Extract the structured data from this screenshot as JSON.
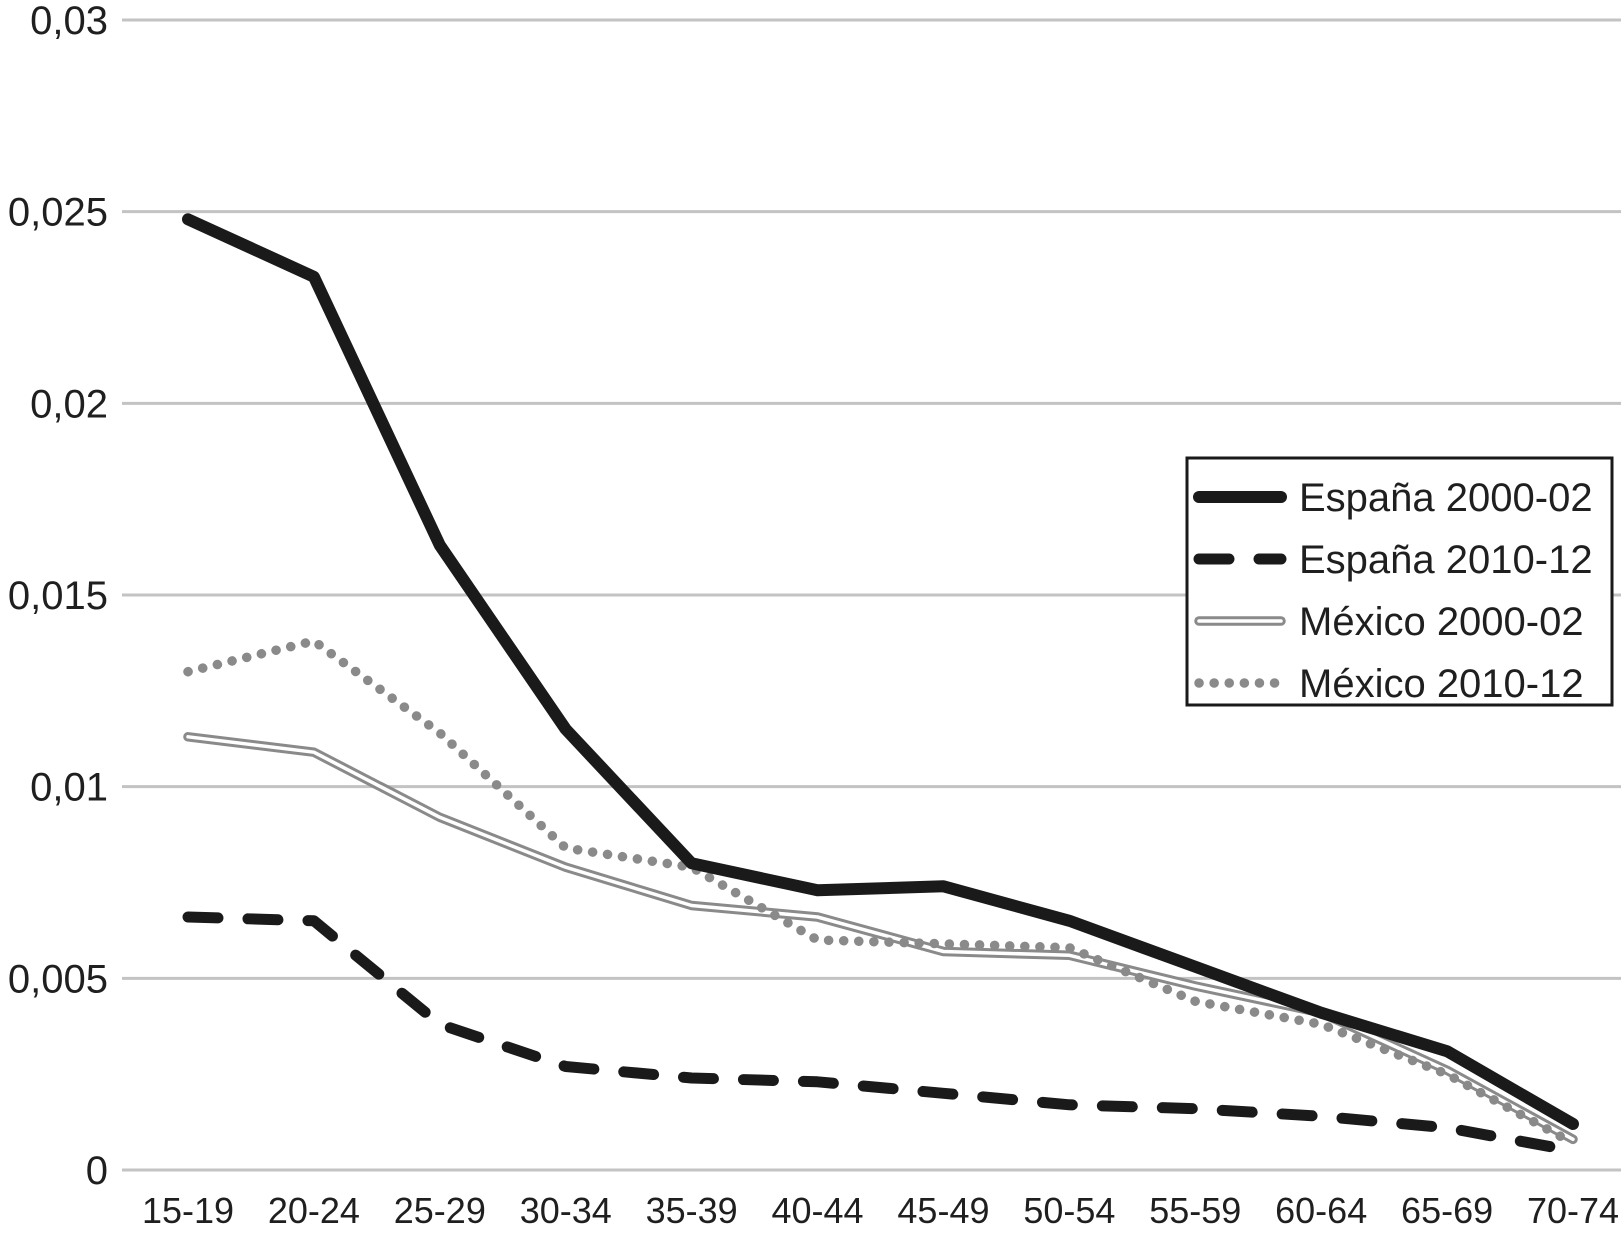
{
  "page": {
    "background_color": "#ffffff"
  },
  "chart_data": {
    "type": "line",
    "title": "",
    "xlabel": "",
    "ylabel": "",
    "categories": [
      "15-19",
      "20-24",
      "25-29",
      "30-34",
      "35-39",
      "40-44",
      "45-49",
      "50-54",
      "55-59",
      "60-64",
      "65-69",
      "70-74"
    ],
    "series": [
      {
        "id": "espana-2000-02",
        "name": "España 2000-02",
        "line_style": "solid",
        "color": "#1a1a1a",
        "values": [
          0.0248,
          0.0233,
          0.0163,
          0.0115,
          0.008,
          0.0073,
          0.0074,
          0.0065,
          0.0053,
          0.0041,
          0.0031,
          0.0012
        ]
      },
      {
        "id": "espana-2010-12",
        "name": "España 2010-12",
        "line_style": "dashed",
        "color": "#1a1a1a",
        "values": [
          0.0066,
          0.0065,
          0.0038,
          0.0027,
          0.0024,
          0.0023,
          0.002,
          0.0017,
          0.0016,
          0.0014,
          0.0011,
          0.0005
        ]
      },
      {
        "id": "mexico-2000-02",
        "name": "México 2000-02",
        "line_style": "double",
        "color": "#8a8a8a",
        "values": [
          0.0113,
          0.0109,
          0.0092,
          0.0079,
          0.0069,
          0.0066,
          0.0057,
          0.0056,
          0.0048,
          0.0041,
          0.0026,
          0.0008
        ]
      },
      {
        "id": "mexico-2010-12",
        "name": "México 2010-12",
        "line_style": "dotted",
        "color": "#8a8a8a",
        "values": [
          0.013,
          0.0138,
          0.0114,
          0.0084,
          0.0079,
          0.006,
          0.0059,
          0.0058,
          0.0044,
          0.0038,
          0.0025,
          0.0007
        ]
      }
    ],
    "y_axis": {
      "min": 0,
      "max": 0.03,
      "tick_step": 0.005,
      "tick_values": [
        0,
        0.005,
        0.01,
        0.015,
        0.02,
        0.025,
        0.03
      ],
      "tick_labels": [
        "0",
        "0,005",
        "0,01",
        "0,015",
        "0,02",
        "0,025",
        "0,03"
      ],
      "decimal_separator": ","
    },
    "x_axis": {
      "tick_labels": [
        "15-19",
        "20-24",
        "25-29",
        "30-34",
        "35-39",
        "40-44",
        "45-49",
        "50-54",
        "55-59",
        "60-64",
        "65-69",
        "70-74"
      ]
    },
    "grid": {
      "show": true,
      "color": "#c3c3c3"
    },
    "legend": {
      "position": "middle-right",
      "background": "#ffffff",
      "border_color": "#1a1a1a",
      "entries": [
        "España 2000-02",
        "España 2010-12",
        "México 2000-02",
        "México 2010-12"
      ]
    }
  }
}
